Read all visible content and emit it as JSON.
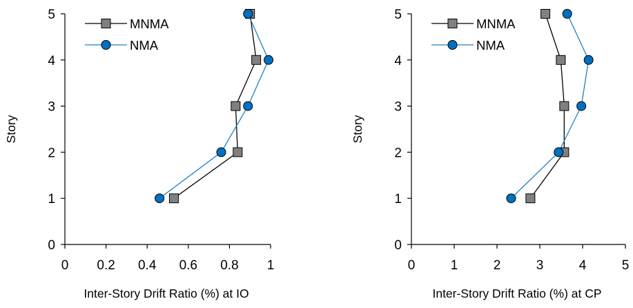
{
  "chart_data": [
    {
      "type": "line",
      "xlabel": "Inter-Story Drift Ratio (%) at IO",
      "ylabel": "Story",
      "xlim": [
        0,
        1
      ],
      "ylim": [
        0,
        5
      ],
      "xticks": [
        0,
        0.2,
        0.4,
        0.6,
        0.8,
        1
      ],
      "xtick_labels": [
        "0",
        "0.2",
        "0.4",
        "0.6",
        "0.8",
        "1"
      ],
      "yticks": [
        0,
        1,
        2,
        3,
        4,
        5
      ],
      "ytick_labels": [
        "0",
        "1",
        "2",
        "3",
        "4",
        "5"
      ],
      "grid": false,
      "legend_position": "top-left",
      "series": [
        {
          "name": "MNMA",
          "marker": "square",
          "color": "#000000",
          "marker_fill": "#808080",
          "points": [
            {
              "x": 0.53,
              "y": 1
            },
            {
              "x": 0.84,
              "y": 2
            },
            {
              "x": 0.83,
              "y": 3
            },
            {
              "x": 0.93,
              "y": 4
            },
            {
              "x": 0.9,
              "y": 5
            }
          ]
        },
        {
          "name": "NMA",
          "marker": "circle",
          "color": "#1b7fc6",
          "marker_fill": "#0070c0",
          "points": [
            {
              "x": 0.46,
              "y": 1
            },
            {
              "x": 0.76,
              "y": 2
            },
            {
              "x": 0.89,
              "y": 3
            },
            {
              "x": 0.99,
              "y": 4
            },
            {
              "x": 0.89,
              "y": 5
            }
          ]
        }
      ]
    },
    {
      "type": "line",
      "xlabel": "Inter-Story Drift Ratio (%) at CP",
      "ylabel": "Story",
      "xlim": [
        0,
        5
      ],
      "ylim": [
        0,
        5
      ],
      "xticks": [
        0,
        1,
        2,
        3,
        4,
        5
      ],
      "xtick_labels": [
        "0",
        "1",
        "2",
        "3",
        "4",
        "5"
      ],
      "yticks": [
        0,
        1,
        2,
        3,
        4,
        5
      ],
      "ytick_labels": [
        "0",
        "1",
        "2",
        "3",
        "4",
        "5"
      ],
      "grid": false,
      "legend_position": "top-left",
      "series": [
        {
          "name": "MNMA",
          "marker": "square",
          "color": "#000000",
          "marker_fill": "#808080",
          "points": [
            {
              "x": 2.78,
              "y": 1
            },
            {
              "x": 3.57,
              "y": 2
            },
            {
              "x": 3.57,
              "y": 3
            },
            {
              "x": 3.49,
              "y": 4
            },
            {
              "x": 3.13,
              "y": 5
            }
          ]
        },
        {
          "name": "NMA",
          "marker": "circle",
          "color": "#1b7fc6",
          "marker_fill": "#0070c0",
          "points": [
            {
              "x": 2.33,
              "y": 1
            },
            {
              "x": 3.44,
              "y": 2
            },
            {
              "x": 3.97,
              "y": 3
            },
            {
              "x": 4.14,
              "y": 4
            },
            {
              "x": 3.64,
              "y": 5
            }
          ]
        }
      ]
    }
  ]
}
